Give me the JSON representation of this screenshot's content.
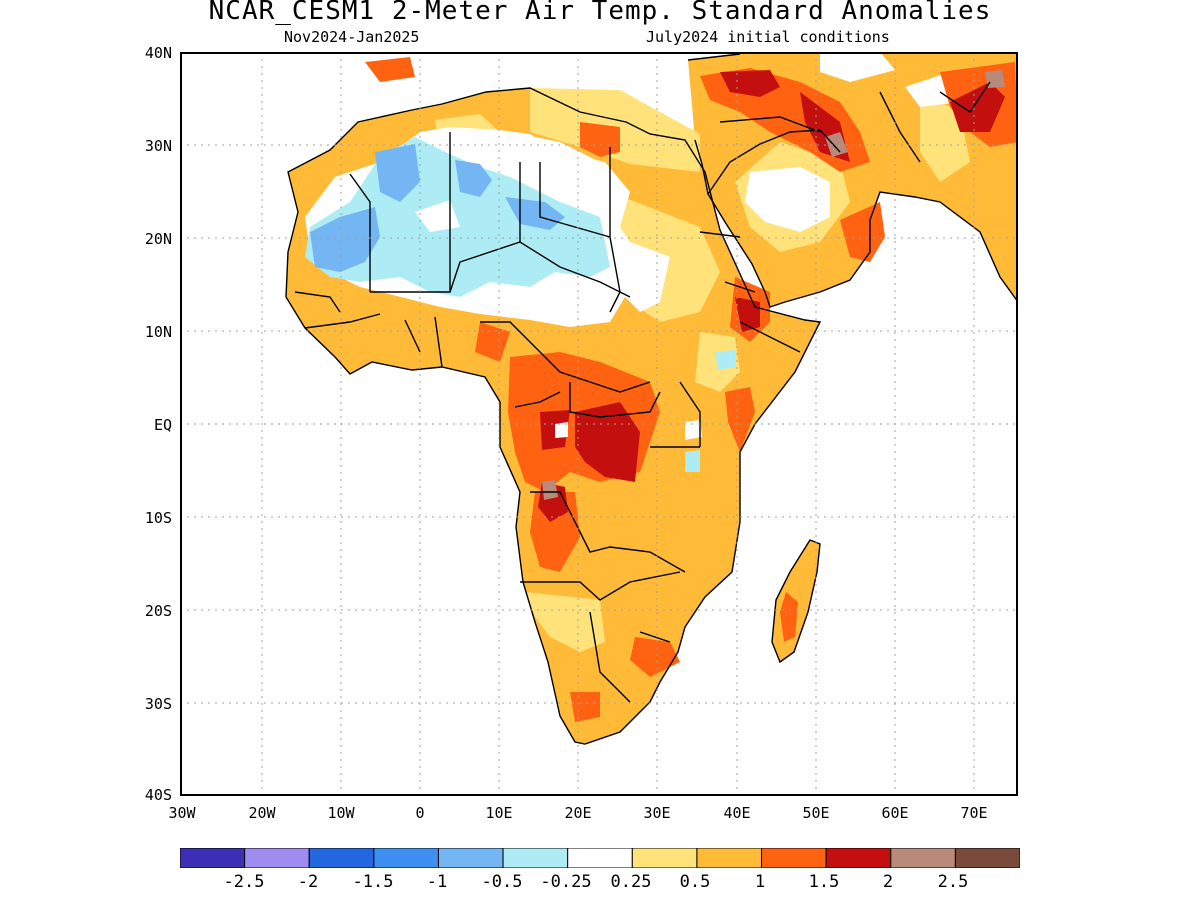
{
  "header": {
    "title": "NCAR_CESM1 2-Meter Air Temp. Standard Anomalies",
    "period": "Nov2024-Jan2025",
    "init": "July2024 initial conditions"
  },
  "axes": {
    "lat_labels": [
      "40N",
      "30N",
      "20N",
      "10N",
      "EQ",
      "10S",
      "20S",
      "30S",
      "40S"
    ],
    "lon_labels": [
      "30W",
      "20W",
      "10W",
      "0",
      "10E",
      "20E",
      "30E",
      "40E",
      "50E",
      "60E",
      "70E"
    ]
  },
  "colorbar": {
    "labels": [
      "-2.5",
      "-2",
      "-1.5",
      "-1",
      "-0.5",
      "-0.25",
      "0.25",
      "0.5",
      "1",
      "1.5",
      "2",
      "2.5"
    ],
    "colors": [
      "#3a2fb5",
      "#9f8cf0",
      "#2368e0",
      "#3d8ff0",
      "#74b5f4",
      "#aeecf5",
      "#ffffff",
      "#ffe27a",
      "#ffbb38",
      "#ff6210",
      "#c40f0f",
      "#b88a7a",
      "#7a4a3a"
    ]
  },
  "map": {
    "land_outline_color": "#000000",
    "grid_color": "#a0a0a0",
    "colors": {
      "neutral": "#ffffff",
      "light_blue": "#aeecf5",
      "mid_blue": "#74b5f4",
      "yellow": "#ffe27a",
      "orange": "#ffbb38",
      "dark_orange": "#ff6210",
      "red": "#c40f0f",
      "brown": "#b88a7a"
    }
  }
}
